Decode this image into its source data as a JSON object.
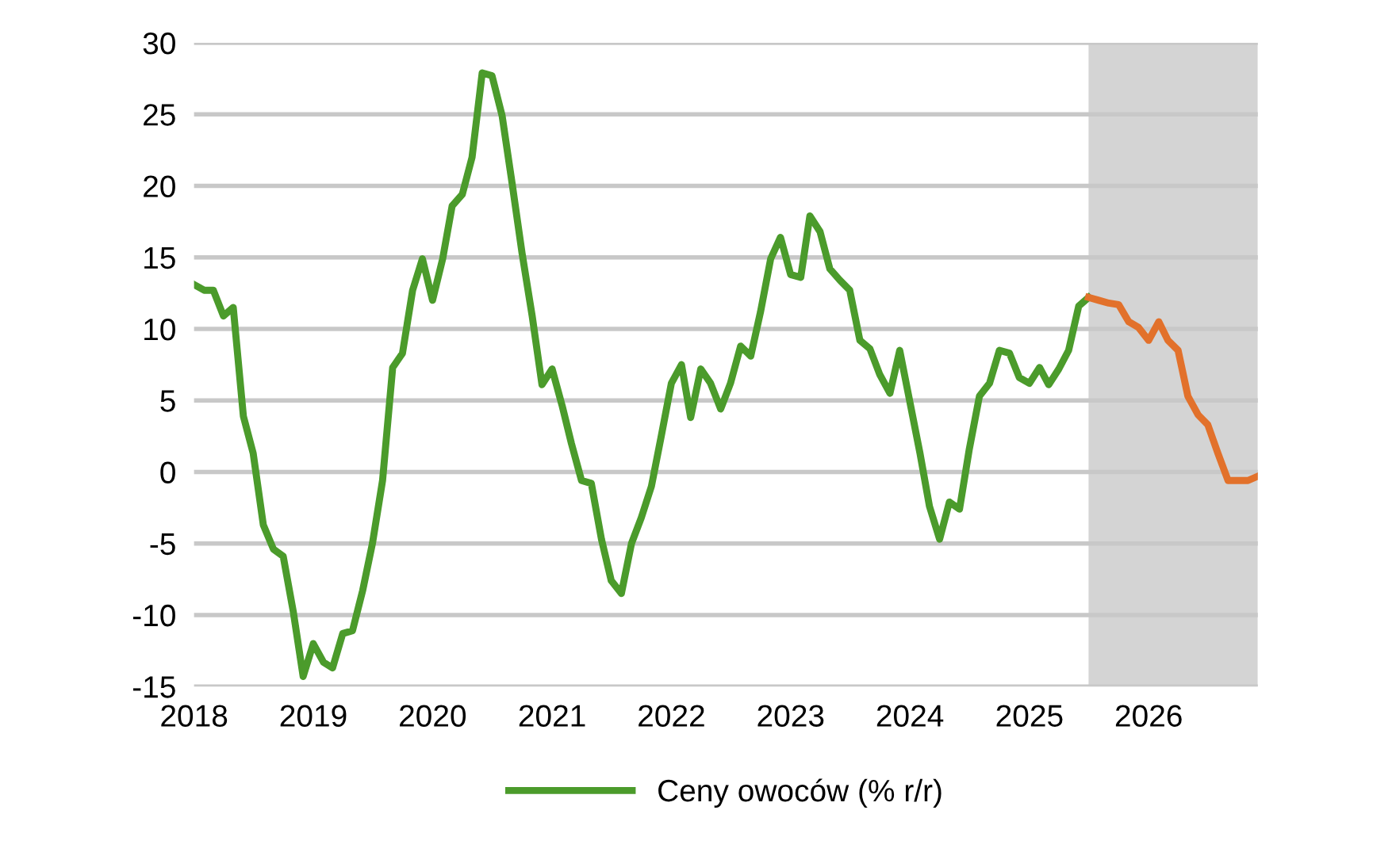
{
  "chart_data": {
    "type": "line",
    "xlim": [
      "2018-01",
      "2026-12"
    ],
    "xticks": [
      "2018",
      "2019",
      "2020",
      "2021",
      "2022",
      "2023",
      "2024",
      "2025",
      "2026"
    ],
    "ylim": [
      -15,
      30
    ],
    "yticks": [
      -15,
      -10,
      -5,
      0,
      5,
      10,
      15,
      20,
      25,
      30
    ],
    "grid": "y",
    "legend": "bottom",
    "line_style": "solid",
    "marker": "none",
    "bands": [
      {
        "axis": "x",
        "from": "2025-07",
        "to": "2026-12",
        "color": "#d4d4d4"
      }
    ],
    "series": [
      {
        "name": "Ceny owoców (% r/r)",
        "color": "#4b9b2b",
        "x": [
          "2018-01",
          "2018-02",
          "2018-03",
          "2018-04",
          "2018-05",
          "2018-06",
          "2018-07",
          "2018-08",
          "2018-09",
          "2018-10",
          "2018-11",
          "2018-12",
          "2019-01",
          "2019-02",
          "2019-03",
          "2019-04",
          "2019-05",
          "2019-06",
          "2019-07",
          "2019-08",
          "2019-09",
          "2019-10",
          "2019-11",
          "2019-12",
          "2020-01",
          "2020-02",
          "2020-03",
          "2020-04",
          "2020-05",
          "2020-06",
          "2020-07",
          "2020-08",
          "2020-09",
          "2020-10",
          "2020-11",
          "2020-12",
          "2021-01",
          "2021-02",
          "2021-03",
          "2021-04",
          "2021-05",
          "2021-06",
          "2021-07",
          "2021-08",
          "2021-09",
          "2021-10",
          "2021-11",
          "2021-12",
          "2022-01",
          "2022-02",
          "2022-03",
          "2022-04",
          "2022-05",
          "2022-06",
          "2022-07",
          "2022-08",
          "2022-09",
          "2022-10",
          "2022-11",
          "2022-12",
          "2023-01",
          "2023-02",
          "2023-03",
          "2023-04",
          "2023-05",
          "2023-06",
          "2023-07",
          "2023-08",
          "2023-09",
          "2023-10",
          "2023-11",
          "2023-12",
          "2024-01",
          "2024-02",
          "2024-03",
          "2024-04",
          "2024-05",
          "2024-06",
          "2024-07",
          "2024-08",
          "2024-09",
          "2024-10",
          "2024-11",
          "2024-12",
          "2025-01",
          "2025-02",
          "2025-03",
          "2025-04",
          "2025-05",
          "2025-06",
          "2025-07"
        ],
        "values": [
          13.1,
          12.7,
          12.7,
          10.9,
          11.5,
          3.9,
          1.3,
          -3.7,
          -5.4,
          -5.9,
          -9.8,
          -14.3,
          -12.0,
          -13.3,
          -13.7,
          -11.3,
          -11.1,
          -8.3,
          -5.0,
          -0.6,
          7.3,
          8.3,
          12.7,
          14.9,
          12.0,
          14.9,
          18.6,
          19.4,
          22.0,
          27.9,
          27.7,
          24.9,
          20.1,
          15.3,
          10.9,
          6.1,
          7.2,
          4.6,
          2.0,
          -0.6,
          -0.8,
          -4.7,
          -7.6,
          -8.5,
          -5.0,
          -3.2,
          -1.0,
          2.5,
          6.2,
          7.5,
          3.8,
          7.2,
          6.2,
          4.4,
          6.2,
          8.8,
          8.1,
          11.2,
          14.9,
          16.4,
          13.8,
          13.6,
          17.9,
          16.8,
          14.2,
          13.4,
          12.7,
          9.2,
          8.6,
          6.8,
          5.5,
          8.5,
          4.9,
          1.3,
          -2.4,
          -4.7,
          -2.1,
          -2.6,
          1.6,
          5.3,
          6.2,
          8.5,
          8.3,
          6.6,
          6.2,
          7.3,
          6.1,
          7.2,
          8.5,
          11.6,
          12.2
        ]
      },
      {
        "color": "#e2712b",
        "x": [
          "2025-07",
          "2025-08",
          "2025-09",
          "2025-10",
          "2025-11",
          "2025-12",
          "2026-01",
          "2026-02",
          "2026-03",
          "2026-04",
          "2026-05",
          "2026-06",
          "2026-07",
          "2026-08",
          "2026-09",
          "2026-10",
          "2026-11",
          "2026-12"
        ],
        "values": [
          12.2,
          12.0,
          11.8,
          11.7,
          10.5,
          10.1,
          9.2,
          10.5,
          9.2,
          8.5,
          5.3,
          4.0,
          3.3,
          1.3,
          -0.6,
          -0.6,
          -0.6,
          -0.3
        ]
      }
    ]
  }
}
